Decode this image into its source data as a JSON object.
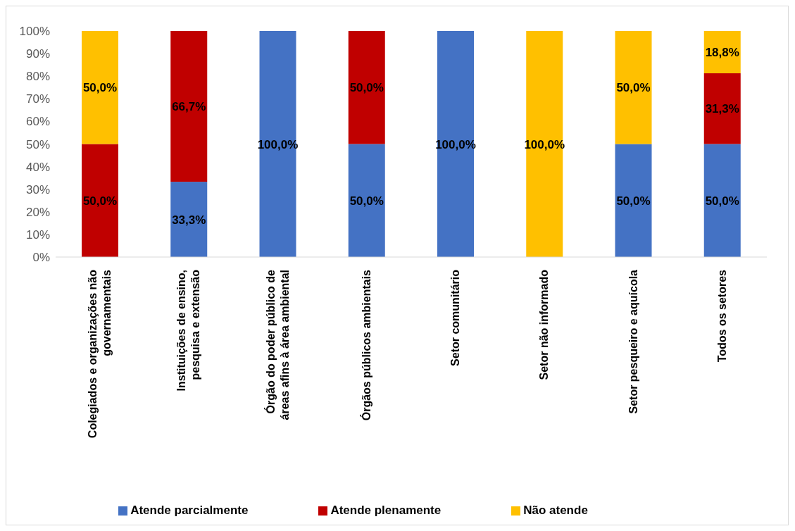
{
  "chart_data": {
    "type": "bar",
    "stacked": true,
    "categories": [
      "Colegiados e organizações não governamentais",
      "Instituições de ensino, pesquisa e extensão",
      "Órgão do poder público de áreas afins à área ambiental",
      "Órgãos públicos ambientais",
      "Setor comunitário",
      "Setor não informado",
      "Setor pesqueiro e aquícola",
      "Todos os setores"
    ],
    "series": [
      {
        "name": "Atende parcialmente",
        "color": "#4472c4",
        "values": [
          0,
          33.3,
          100,
          50,
          100,
          0,
          50,
          50
        ],
        "value_labels": [
          null,
          "33,3%",
          "100,0%",
          "50,0%",
          "100,0%",
          null,
          "50,0%",
          "50,0%"
        ]
      },
      {
        "name": "Atende plenamente",
        "color": "#c00000",
        "values": [
          50,
          66.7,
          0,
          50,
          0,
          0,
          0,
          31.3
        ],
        "value_labels": [
          "50,0%",
          "66,7%",
          null,
          "50,0%",
          null,
          null,
          null,
          "31,3%"
        ]
      },
      {
        "name": "Não atende",
        "color": "#ffc000",
        "values": [
          50,
          0,
          0,
          0,
          0,
          100,
          50,
          18.8
        ],
        "value_labels": [
          "50,0%",
          null,
          null,
          null,
          null,
          "100,0%",
          "50,0%",
          "18,8%"
        ]
      }
    ],
    "ylim": [
      0,
      100
    ],
    "yticks": [
      {
        "value": 0,
        "label": "0%"
      },
      {
        "value": 10,
        "label": "10%"
      },
      {
        "value": 20,
        "label": "20%"
      },
      {
        "value": 30,
        "label": "30%"
      },
      {
        "value": 40,
        "label": "40%"
      },
      {
        "value": 50,
        "label": "50%"
      },
      {
        "value": 60,
        "label": "60%"
      },
      {
        "value": 70,
        "label": "70%"
      },
      {
        "value": 80,
        "label": "80%"
      },
      {
        "value": 90,
        "label": "90%"
      },
      {
        "value": 100,
        "label": "100%"
      }
    ],
    "legend": "bottom"
  }
}
